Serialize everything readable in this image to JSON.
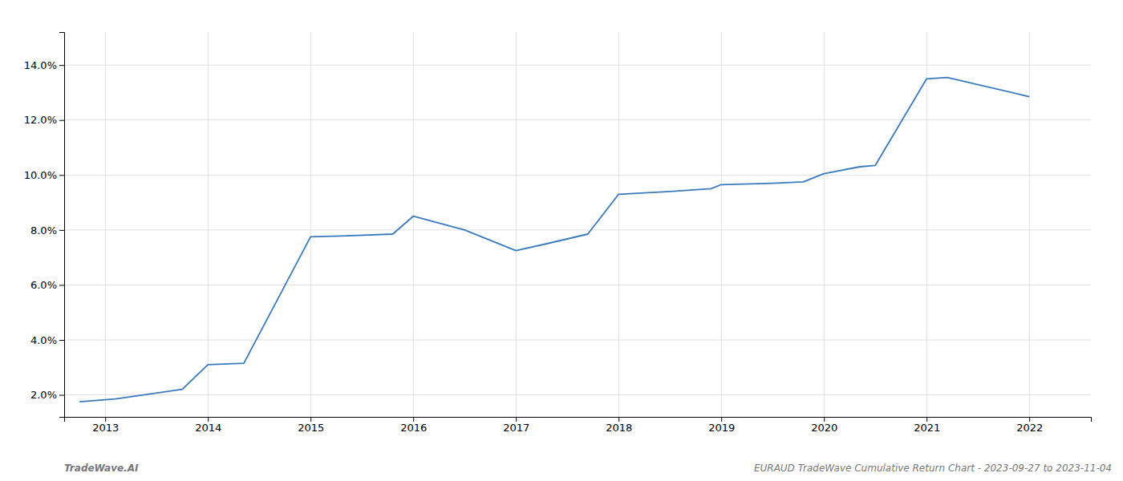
{
  "chart_data": {
    "type": "line",
    "x": [
      2012.75,
      2013.1,
      2013.75,
      2014.0,
      2014.35,
      2015.0,
      2015.3,
      2015.8,
      2016.0,
      2016.5,
      2017.0,
      2017.3,
      2017.7,
      2018.0,
      2018.5,
      2018.9,
      2019.0,
      2019.5,
      2019.8,
      2020.0,
      2020.35,
      2020.5,
      2021.0,
      2021.2,
      2022.0
    ],
    "values": [
      1.75,
      1.85,
      2.2,
      3.1,
      3.15,
      7.75,
      7.78,
      7.85,
      8.5,
      8.0,
      7.25,
      7.5,
      7.85,
      9.3,
      9.4,
      9.5,
      9.65,
      9.7,
      9.75,
      10.05,
      10.3,
      10.35,
      13.5,
      13.55,
      12.85
    ],
    "color": "#3a7abf",
    "xlim": [
      2012.6,
      2022.6
    ],
    "xticks": [
      2013,
      2014,
      2015,
      2016,
      2017,
      2018,
      2019,
      2020,
      2021,
      2022
    ],
    "ylim": [
      1.2,
      15.2
    ],
    "yticks": [
      {
        "value": 2.0,
        "label": "2.0%"
      },
      {
        "value": 4.0,
        "label": "4.0%"
      },
      {
        "value": 6.0,
        "label": "6.0%"
      },
      {
        "value": 8.0,
        "label": "8.0%"
      },
      {
        "value": 10.0,
        "label": "10.0%"
      },
      {
        "value": 12.0,
        "label": "12.0%"
      },
      {
        "value": 14.0,
        "label": "14.0%"
      }
    ],
    "grid": true,
    "annotations": [
      "TradeWave.AI",
      "EURAUD TradeWave Cumulative Return Chart - 2023-09-27 to 2023-11-04"
    ]
  }
}
